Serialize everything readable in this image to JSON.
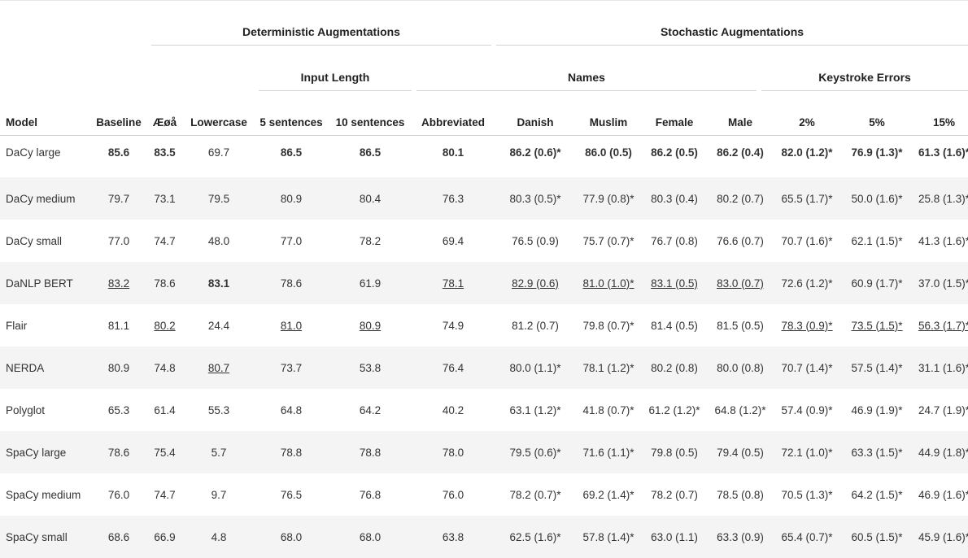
{
  "groups": {
    "deterministic": "Deterministic Augmentations",
    "stochastic": "Stochastic Augmentations",
    "input_length": "Input Length",
    "names": "Names",
    "keystroke": "Keystroke Errors"
  },
  "columns": [
    "Model",
    "Baseline",
    "Æøå",
    "Lowercase",
    "5 sentences",
    "10 sentences",
    "Abbreviated",
    "Danish",
    "Muslim",
    "Female",
    "Male",
    "2%",
    "5%",
    "15%"
  ],
  "rows": [
    {
      "model": "DaCy large",
      "cells": [
        {
          "v": "85.6",
          "b": true
        },
        {
          "v": "83.5",
          "b": true
        },
        {
          "v": "69.7"
        },
        {
          "v": "86.5",
          "b": true
        },
        {
          "v": "86.5",
          "b": true
        },
        {
          "v": "80.1",
          "b": true
        },
        {
          "v": "86.2 (0.6)*",
          "b": true
        },
        {
          "v": "86.0 (0.5)",
          "b": true
        },
        {
          "v": "86.2 (0.5)",
          "b": true
        },
        {
          "v": "86.2 (0.4)",
          "b": true
        },
        {
          "v": "82.0 (1.2)*",
          "b": true
        },
        {
          "v": "76.9 (1.3)*",
          "b": true
        },
        {
          "v": "61.3 (1.6)*",
          "b": true
        }
      ]
    },
    {
      "model": "DaCy medium",
      "cells": [
        {
          "v": "79.7"
        },
        {
          "v": "73.1"
        },
        {
          "v": "79.5"
        },
        {
          "v": "80.9"
        },
        {
          "v": "80.4"
        },
        {
          "v": "76.3"
        },
        {
          "v": "80.3 (0.5)*"
        },
        {
          "v": "77.9 (0.8)*"
        },
        {
          "v": "80.3 (0.4)"
        },
        {
          "v": "80.2 (0.7)"
        },
        {
          "v": "65.5 (1.7)*"
        },
        {
          "v": "50.0 (1.6)*"
        },
        {
          "v": "25.8 (1.3)*"
        }
      ]
    },
    {
      "model": "DaCy small",
      "cells": [
        {
          "v": "77.0"
        },
        {
          "v": "74.7"
        },
        {
          "v": "48.0"
        },
        {
          "v": "77.0"
        },
        {
          "v": "78.2"
        },
        {
          "v": "69.4"
        },
        {
          "v": "76.5 (0.9)"
        },
        {
          "v": "75.7 (0.7)*"
        },
        {
          "v": "76.7 (0.8)"
        },
        {
          "v": "76.6 (0.7)"
        },
        {
          "v": "70.7 (1.6)*"
        },
        {
          "v": "62.1 (1.5)*"
        },
        {
          "v": "41.3 (1.6)*"
        }
      ]
    },
    {
      "model": "DaNLP BERT",
      "cells": [
        {
          "v": "83.2",
          "u": true
        },
        {
          "v": "78.6"
        },
        {
          "v": "83.1",
          "b": true
        },
        {
          "v": "78.6"
        },
        {
          "v": "61.9"
        },
        {
          "v": "78.1",
          "u": true
        },
        {
          "v": "82.9 (0.6)",
          "u": true
        },
        {
          "v": "81.0 (1.0)*",
          "u": true
        },
        {
          "v": "83.1 (0.5)",
          "u": true
        },
        {
          "v": "83.0 (0.7)",
          "u": true
        },
        {
          "v": "72.6 (1.2)*"
        },
        {
          "v": "60.9 (1.7)*"
        },
        {
          "v": "37.0 (1.5)*"
        }
      ]
    },
    {
      "model": "Flair",
      "cells": [
        {
          "v": "81.1"
        },
        {
          "v": "80.2",
          "u": true
        },
        {
          "v": "24.4"
        },
        {
          "v": "81.0",
          "u": true
        },
        {
          "v": "80.9",
          "u": true
        },
        {
          "v": "74.9"
        },
        {
          "v": "81.2 (0.7)"
        },
        {
          "v": "79.8 (0.7)*"
        },
        {
          "v": "81.4 (0.5)"
        },
        {
          "v": "81.5 (0.5)"
        },
        {
          "v": "78.3 (0.9)*",
          "u": true
        },
        {
          "v": "73.5 (1.5)*",
          "u": true
        },
        {
          "v": "56.3 (1.7)*",
          "u": true
        }
      ]
    },
    {
      "model": "NERDA",
      "cells": [
        {
          "v": "80.9"
        },
        {
          "v": "74.8"
        },
        {
          "v": "80.7",
          "u": true
        },
        {
          "v": "73.7"
        },
        {
          "v": "53.8"
        },
        {
          "v": "76.4"
        },
        {
          "v": "80.0 (1.1)*"
        },
        {
          "v": "78.1 (1.2)*"
        },
        {
          "v": "80.2 (0.8)"
        },
        {
          "v": "80.0 (0.8)"
        },
        {
          "v": "70.7 (1.4)*"
        },
        {
          "v": "57.5 (1.4)*"
        },
        {
          "v": "31.1 (1.6)*"
        }
      ]
    },
    {
      "model": "Polyglot",
      "cells": [
        {
          "v": "65.3"
        },
        {
          "v": "61.4"
        },
        {
          "v": "55.3"
        },
        {
          "v": "64.8"
        },
        {
          "v": "64.2"
        },
        {
          "v": "40.2"
        },
        {
          "v": "63.1 (1.2)*"
        },
        {
          "v": "41.8 (0.7)*"
        },
        {
          "v": "61.2 (1.2)*"
        },
        {
          "v": "64.8 (1.2)*"
        },
        {
          "v": "57.4 (0.9)*"
        },
        {
          "v": "46.9 (1.9)*"
        },
        {
          "v": "24.7 (1.9)*"
        }
      ]
    },
    {
      "model": "SpaCy large",
      "cells": [
        {
          "v": "78.6"
        },
        {
          "v": "75.4"
        },
        {
          "v": "5.7"
        },
        {
          "v": "78.8"
        },
        {
          "v": "78.8"
        },
        {
          "v": "78.0"
        },
        {
          "v": "79.5 (0.6)*"
        },
        {
          "v": "71.6 (1.1)*"
        },
        {
          "v": "79.8 (0.5)"
        },
        {
          "v": "79.4 (0.5)"
        },
        {
          "v": "72.1 (1.0)*"
        },
        {
          "v": "63.3 (1.5)*"
        },
        {
          "v": "44.9 (1.8)*"
        }
      ]
    },
    {
      "model": "SpaCy medium",
      "cells": [
        {
          "v": "76.0"
        },
        {
          "v": "74.7"
        },
        {
          "v": "9.7"
        },
        {
          "v": "76.5"
        },
        {
          "v": "76.8"
        },
        {
          "v": "76.0"
        },
        {
          "v": "78.2 (0.7)*"
        },
        {
          "v": "69.2 (1.4)*"
        },
        {
          "v": "78.2 (0.7)"
        },
        {
          "v": "78.5 (0.8)"
        },
        {
          "v": "70.5 (1.3)*"
        },
        {
          "v": "64.2 (1.5)*"
        },
        {
          "v": "46.9 (1.6)*"
        }
      ]
    },
    {
      "model": "SpaCy small",
      "cells": [
        {
          "v": "68.6"
        },
        {
          "v": "66.9"
        },
        {
          "v": "4.8"
        },
        {
          "v": "68.0"
        },
        {
          "v": "68.0"
        },
        {
          "v": "63.8"
        },
        {
          "v": "62.5 (1.6)*"
        },
        {
          "v": "57.8 (1.4)*"
        },
        {
          "v": "63.0 (1.1)"
        },
        {
          "v": "63.3 (0.9)"
        },
        {
          "v": "65.4 (0.7)*"
        },
        {
          "v": "60.5 (1.5)*"
        },
        {
          "v": "45.9 (1.6)*"
        }
      ]
    }
  ]
}
